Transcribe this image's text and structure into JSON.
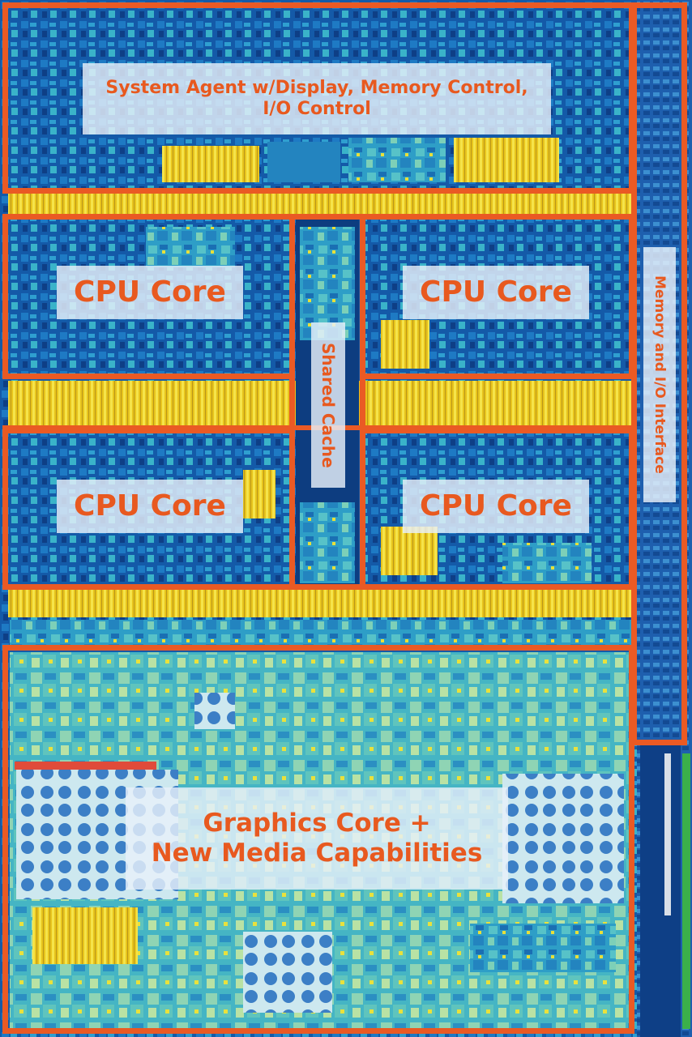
{
  "labels": {
    "system_agent_line1": "System Agent w/Display, Memory Control,",
    "system_agent_line2": "I/O Control",
    "cpu_core_top_left": "CPU Core",
    "cpu_core_top_right": "CPU Core",
    "cpu_core_bottom_left": "CPU Core",
    "cpu_core_bottom_right": "CPU Core",
    "shared_cache": "Shared Cache",
    "memory_io": "Memory and I/O Interface",
    "graphics_line1": "Graphics Core +",
    "graphics_line2": "New Media Capabilities"
  },
  "colors": {
    "outline": "#ea5a24",
    "label_text": "#e8591f",
    "die_dark": "#0b3a78",
    "die_cyan": "#2aa0c8",
    "die_yellow": "#f2d21a"
  }
}
